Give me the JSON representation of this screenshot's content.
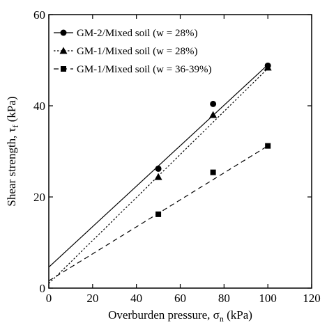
{
  "chart_data": {
    "type": "scatter",
    "xlabel": "Overburden pressure, σ",
    "xlabel_sub": "n",
    "xlabel_unit": " (kPa)",
    "ylabel": "Shear strength, τ",
    "ylabel_sub": "f",
    "ylabel_unit": " (kPa)",
    "xlim": [
      0,
      120
    ],
    "ylim": [
      0,
      60
    ],
    "xticks": [
      0,
      20,
      40,
      60,
      80,
      100,
      120
    ],
    "yticks": [
      0,
      20,
      40,
      60
    ],
    "grid": false,
    "legend_position": "top-left",
    "series": [
      {
        "name": "GM-2/Mixed soil (w = 28%)",
        "marker": "circle",
        "line_style": "solid",
        "x": [
          50,
          75,
          100
        ],
        "y": [
          26.2,
          40.4,
          48.8
        ],
        "fit": {
          "x": [
            0,
            100
          ],
          "y": [
            4.6,
            49.0
          ]
        }
      },
      {
        "name": "GM-1/Mixed soil (w = 28%)",
        "marker": "triangle",
        "line_style": "dotted",
        "x": [
          50,
          75,
          100
        ],
        "y": [
          24.4,
          38.0,
          48.4
        ],
        "fit": {
          "x": [
            0,
            100
          ],
          "y": [
            1.0,
            48.2
          ]
        }
      },
      {
        "name": "GM-1/Mixed soil (w = 36-39%)",
        "marker": "square",
        "line_style": "dashed",
        "x": [
          50,
          75,
          100
        ],
        "y": [
          16.2,
          25.4,
          31.2
        ],
        "fit": {
          "x": [
            0,
            100
          ],
          "y": [
            1.6,
            31.2
          ]
        }
      }
    ]
  }
}
